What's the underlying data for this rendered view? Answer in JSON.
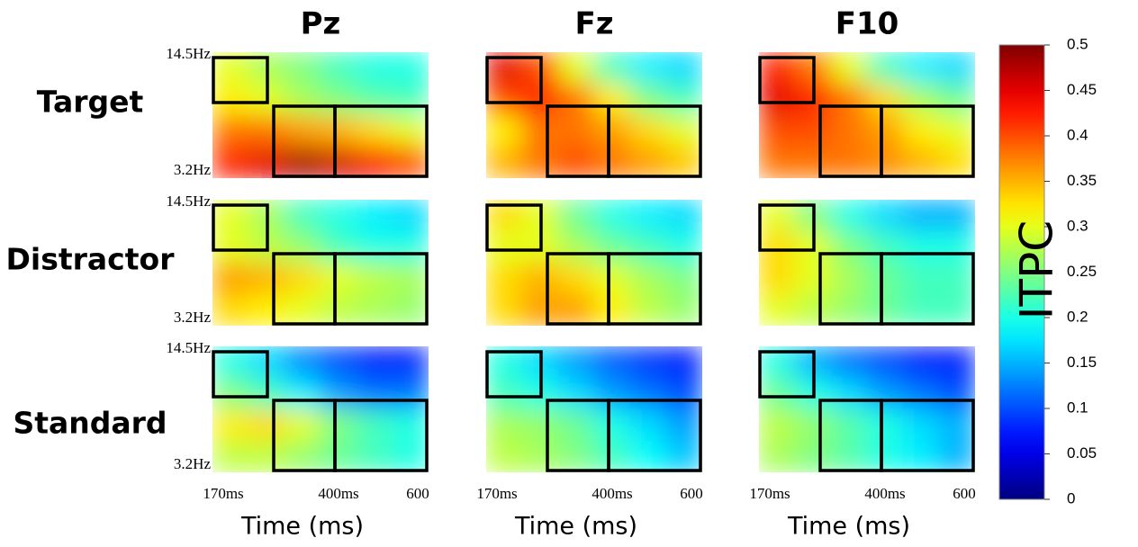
{
  "chart_data": {
    "type": "heatmap",
    "colormap": "jet",
    "columns": [
      "Pz",
      "Fz",
      "F10"
    ],
    "rows": [
      "Target",
      "Distractor",
      "Standard"
    ],
    "y_labels": [
      "14.5Hz",
      "3.2Hz"
    ],
    "x_labels": [
      "170ms",
      "400ms",
      "600"
    ],
    "xlabel": "Time (ms)",
    "colorbar": {
      "label": "ITPC",
      "lim": [
        0,
        0.5
      ],
      "ticks": [
        0,
        0.05,
        0.1,
        0.15,
        0.2,
        0.25,
        0.3,
        0.35,
        0.4,
        0.45,
        0.5
      ]
    },
    "panels": [
      [
        [
          [
            0.3,
            0.27,
            0.25,
            0.22,
            0.2,
            0.2
          ],
          [
            0.32,
            0.3,
            0.27,
            0.25,
            0.23,
            0.22
          ],
          [
            0.38,
            0.38,
            0.36,
            0.35,
            0.33,
            0.3
          ],
          [
            0.42,
            0.45,
            0.48,
            0.46,
            0.44,
            0.4
          ]
        ],
        [
          [
            0.45,
            0.4,
            0.3,
            0.22,
            0.18,
            0.17
          ],
          [
            0.4,
            0.42,
            0.38,
            0.32,
            0.25,
            0.22
          ],
          [
            0.32,
            0.38,
            0.38,
            0.36,
            0.33,
            0.3
          ],
          [
            0.35,
            0.38,
            0.4,
            0.38,
            0.36,
            0.34
          ]
        ],
        [
          [
            0.42,
            0.38,
            0.3,
            0.22,
            0.18,
            0.17
          ],
          [
            0.45,
            0.42,
            0.38,
            0.33,
            0.27,
            0.24
          ],
          [
            0.4,
            0.4,
            0.38,
            0.36,
            0.32,
            0.3
          ],
          [
            0.38,
            0.38,
            0.38,
            0.37,
            0.35,
            0.33
          ]
        ]
      ],
      [
        [
          [
            0.3,
            0.27,
            0.22,
            0.2,
            0.18,
            0.17
          ],
          [
            0.3,
            0.28,
            0.26,
            0.22,
            0.2,
            0.2
          ],
          [
            0.36,
            0.35,
            0.33,
            0.3,
            0.28,
            0.27
          ],
          [
            0.33,
            0.32,
            0.3,
            0.28,
            0.27,
            0.26
          ]
        ],
        [
          [
            0.33,
            0.3,
            0.24,
            0.2,
            0.18,
            0.17
          ],
          [
            0.3,
            0.3,
            0.27,
            0.24,
            0.22,
            0.2
          ],
          [
            0.33,
            0.35,
            0.33,
            0.3,
            0.27,
            0.25
          ],
          [
            0.33,
            0.36,
            0.36,
            0.32,
            0.28,
            0.26
          ]
        ],
        [
          [
            0.3,
            0.25,
            0.2,
            0.17,
            0.15,
            0.15
          ],
          [
            0.33,
            0.3,
            0.25,
            0.22,
            0.2,
            0.2
          ],
          [
            0.33,
            0.3,
            0.27,
            0.24,
            0.22,
            0.22
          ],
          [
            0.3,
            0.28,
            0.26,
            0.24,
            0.22,
            0.22
          ]
        ]
      ],
      [
        [
          [
            0.2,
            0.17,
            0.13,
            0.1,
            0.08,
            0.08
          ],
          [
            0.25,
            0.22,
            0.18,
            0.14,
            0.12,
            0.12
          ],
          [
            0.32,
            0.33,
            0.3,
            0.25,
            0.22,
            0.2
          ],
          [
            0.28,
            0.28,
            0.26,
            0.24,
            0.22,
            0.2
          ]
        ],
        [
          [
            0.2,
            0.17,
            0.14,
            0.11,
            0.09,
            0.08
          ],
          [
            0.22,
            0.2,
            0.17,
            0.14,
            0.12,
            0.1
          ],
          [
            0.27,
            0.26,
            0.24,
            0.2,
            0.17,
            0.14
          ],
          [
            0.28,
            0.27,
            0.25,
            0.22,
            0.19,
            0.16
          ]
        ],
        [
          [
            0.2,
            0.15,
            0.12,
            0.1,
            0.08,
            0.08
          ],
          [
            0.24,
            0.2,
            0.17,
            0.14,
            0.12,
            0.1
          ],
          [
            0.28,
            0.26,
            0.23,
            0.2,
            0.17,
            0.15
          ],
          [
            0.27,
            0.25,
            0.23,
            0.2,
            0.18,
            0.15
          ]
        ]
      ]
    ]
  }
}
